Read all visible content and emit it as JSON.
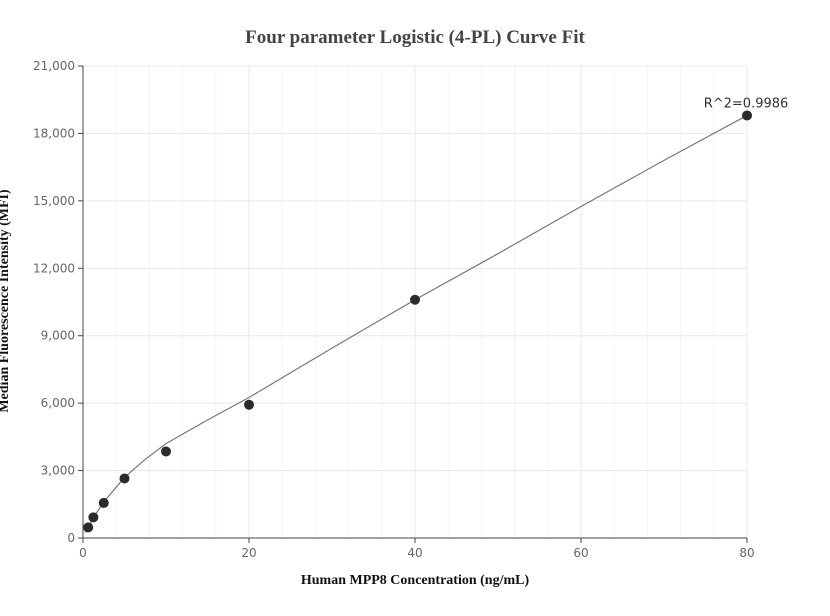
{
  "chart_data": {
    "type": "scatter",
    "title": "Four parameter Logistic (4-PL) Curve Fit",
    "xlabel": "Human MPP8 Concentration (ng/mL)",
    "ylabel": "Median Fluorescence Intensity (MFI)",
    "xlim": [
      0,
      80
    ],
    "ylim": [
      0,
      21000
    ],
    "x_ticks": [
      0,
      20,
      40,
      60,
      80
    ],
    "x_tick_labels": [
      "0",
      "20",
      "40",
      "60",
      "80"
    ],
    "y_ticks": [
      0,
      3000,
      6000,
      9000,
      12000,
      15000,
      18000,
      21000
    ],
    "y_tick_labels": [
      "0",
      "3,000",
      "6,000",
      "9,000",
      "12,000",
      "15,000",
      "18,000",
      "21,000"
    ],
    "grid": true,
    "x": [
      0.625,
      1.25,
      2.5,
      5,
      10,
      20,
      40,
      80
    ],
    "y": [
      470,
      920,
      1560,
      2650,
      3850,
      5930,
      10600,
      18800
    ],
    "fit_curve": {
      "x": [
        0.3,
        0.625,
        1.25,
        2.5,
        5,
        7.5,
        10,
        15,
        20,
        30,
        40,
        50,
        60,
        70,
        80
      ],
      "y": [
        240,
        480,
        910,
        1600,
        2700,
        3500,
        4200,
        5250,
        6250,
        8450,
        10600,
        12650,
        14750,
        16800,
        18800
      ]
    },
    "annotations": [
      {
        "text": "R^2=0.9986",
        "x": 80,
        "y": 18800
      }
    ]
  },
  "colors": {
    "point": "#2b2b2b",
    "curve": "#777777",
    "grid_major": "#e8e8e8",
    "grid_minor": "#f4f4f4",
    "axis": "#444444"
  }
}
